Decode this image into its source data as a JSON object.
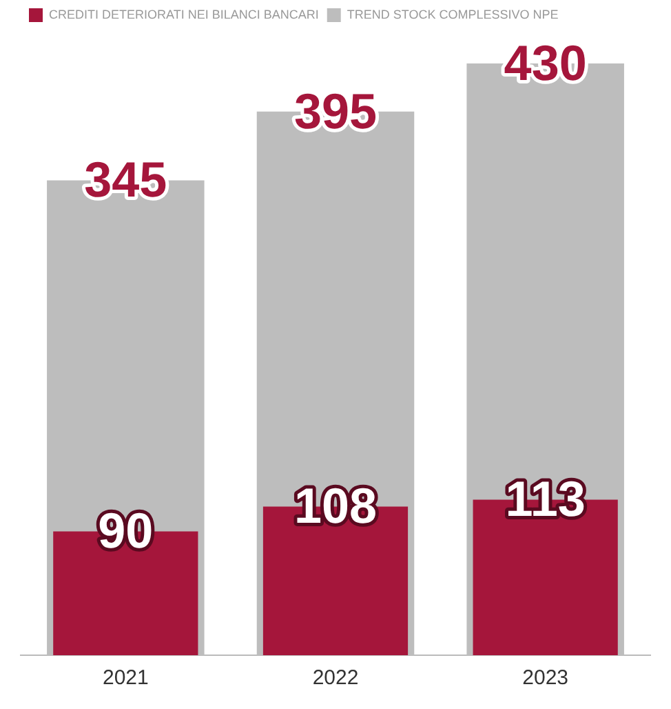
{
  "chart_data": {
    "type": "bar",
    "categories": [
      "2021",
      "2022",
      "2023"
    ],
    "series": [
      {
        "name": "TREND STOCK COMPLESSIVO NPE",
        "color": "#bdbdbd",
        "values": [
          345,
          395,
          430
        ]
      },
      {
        "name": "CREDITI DETERIORATI NEI BILANCI BANCARI",
        "color": "#a5163b",
        "values": [
          90,
          108,
          113
        ]
      }
    ],
    "tick_labels": "x",
    "data_labels": true,
    "grid": false,
    "legend": "top left"
  }
}
